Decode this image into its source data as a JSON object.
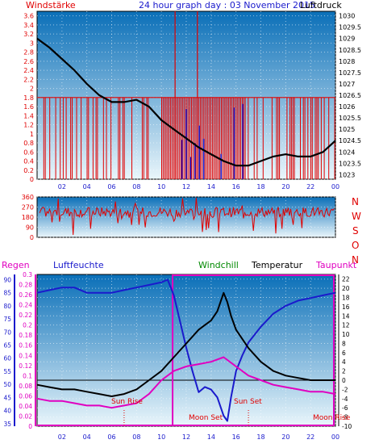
{
  "header": {
    "title": "24 hour graph day : 03 November 2015",
    "left_label": "Windstärke",
    "right_label": "Luftdruck"
  },
  "direction_letters": [
    "N",
    "W",
    "S",
    "O",
    "N"
  ],
  "bottom_labels": {
    "regen": "Regen",
    "luftfeuchte": "Luftfeuchte",
    "windchill": "Windchill",
    "temperatur": "Temperatur",
    "taupunkt": "Taupunkt"
  },
  "annotations": {
    "sun_rise": "Sun Rise",
    "moon_set_1": "Moon Set",
    "sun_set": "Sun Set",
    "moon_set_2": "Moon Rise"
  },
  "colors": {
    "red": "#e00000",
    "blue": "#1a1acc",
    "green": "#008800",
    "magenta": "#e000c0",
    "black": "#000000",
    "plot_top": "#0a6fb8",
    "plot_bottom": "#eaf6fb"
  },
  "chart_data": [
    {
      "type": "line",
      "name": "wind-pressure",
      "x_ticks": [
        "02",
        "04",
        "06",
        "08",
        "10",
        "12",
        "14",
        "16",
        "18",
        "20",
        "22",
        "00"
      ],
      "y_left_ticks": [
        "0",
        "0.2",
        "0.4",
        "0.6",
        "0.8",
        "1",
        "1.2",
        "1.4",
        "1.6",
        "1.8",
        "2",
        "2.2",
        "2.4",
        "2.6",
        "2.8",
        "3",
        "3.2",
        "3.4",
        "3.6"
      ],
      "y_right_ticks": [
        "1023",
        "1023.5",
        "1024",
        "1024.5",
        "1025",
        "1025.5",
        "1026",
        "1026.5",
        "1027",
        "1027.5",
        "1028",
        "1028.5",
        "1029",
        "1029.5",
        "1030"
      ],
      "y_left_range": [
        0,
        3.7
      ],
      "y_right_range": [
        1022.8,
        1030.2
      ],
      "pressure": {
        "x": [
          0,
          1,
          2,
          3,
          4,
          5,
          6,
          7,
          8,
          9,
          10,
          11,
          12,
          13,
          14,
          15,
          16,
          17,
          18,
          19,
          20,
          21,
          22,
          23,
          24
        ],
        "y": [
          1029.0,
          1028.6,
          1028.1,
          1027.6,
          1027.0,
          1026.5,
          1026.2,
          1026.2,
          1026.3,
          1026.0,
          1025.4,
          1025.0,
          1024.6,
          1024.2,
          1023.9,
          1023.6,
          1023.4,
          1023.4,
          1023.6,
          1023.8,
          1023.9,
          1023.8,
          1023.8,
          1024.0,
          1024.5
        ]
      },
      "wind_avg_level": 1.8,
      "wind_gusts": [
        {
          "x": 11.1,
          "y": 3.7
        },
        {
          "x": 12.9,
          "y": 3.7
        }
      ],
      "grid": true
    },
    {
      "type": "scatter",
      "name": "wind-direction",
      "y_ticks": [
        "0",
        "90",
        "180",
        "270",
        "360"
      ],
      "y_range": [
        0,
        360
      ],
      "x_range": [
        0,
        24
      ],
      "typical_band": [
        180,
        270
      ]
    },
    {
      "type": "line",
      "name": "humidity-temperature",
      "y_regen_ticks": [
        "0",
        "0.02",
        "0.04",
        "0.06",
        "0.08",
        "0.1",
        "0.12",
        "0.14",
        "0.16",
        "0.18",
        "0.2",
        "0.22",
        "0.24",
        "0.26",
        "0.28",
        "0.3"
      ],
      "y_humidity_ticks": [
        "35",
        "40",
        "45",
        "50",
        "55",
        "60",
        "65",
        "70",
        "75",
        "80",
        "85",
        "90"
      ],
      "y_temp_ticks": [
        "-10",
        "-8",
        "-6",
        "-4",
        "-2",
        "0",
        "2",
        "4",
        "6",
        "8",
        "10",
        "12",
        "14",
        "16",
        "18",
        "20",
        "22"
      ],
      "y_temp_range": [
        -10,
        23
      ],
      "y_humidity_range": [
        34,
        92
      ],
      "humidity": {
        "x": [
          0,
          1,
          2,
          3,
          4,
          5,
          6,
          7,
          8,
          9,
          10,
          10.5,
          11,
          11.5,
          12,
          12.5,
          13,
          13.5,
          14,
          14.5,
          15,
          15.3,
          15.6,
          16,
          16.5,
          17,
          18,
          19,
          20,
          21,
          22,
          23,
          24
        ],
        "y": [
          85,
          86,
          87,
          87,
          85,
          85,
          85,
          86,
          87,
          88,
          89,
          90,
          84,
          74,
          64,
          55,
          47,
          49,
          48,
          45,
          38,
          36,
          45,
          55,
          61,
          66,
          72,
          77,
          80,
          82,
          83,
          84,
          85
        ]
      },
      "temperature": {
        "x": [
          0,
          1,
          2,
          3,
          4,
          5,
          6,
          7,
          8,
          9,
          10,
          11,
          12,
          13,
          14,
          14.5,
          15,
          15.3,
          15.6,
          16,
          17,
          18,
          19,
          20,
          21,
          22,
          23,
          24
        ],
        "y": [
          -1,
          -1.5,
          -2,
          -2,
          -2.5,
          -3,
          -3.5,
          -3,
          -2,
          0,
          2,
          5,
          8,
          11,
          13,
          15,
          19,
          17,
          14,
          11,
          7,
          4,
          2,
          1,
          0.5,
          0,
          0,
          0
        ]
      },
      "dewpoint": {
        "x": [
          0,
          1,
          2,
          3,
          4,
          5,
          6,
          7,
          8,
          9,
          10,
          11,
          12,
          13,
          14,
          15,
          16,
          17,
          18,
          19,
          20,
          21,
          22,
          23,
          24
        ],
        "y": [
          -4,
          -4.5,
          -4.5,
          -5,
          -5.5,
          -5.5,
          -6,
          -5.5,
          -5,
          -3,
          0,
          2,
          3,
          3.5,
          4,
          5,
          3,
          1,
          0,
          -1,
          -1.5,
          -2,
          -2.5,
          -2.5,
          -3
        ]
      },
      "zero_line": 0,
      "sun_rise_hour": 7.0,
      "sun_set_hour": 17.0,
      "moon_set_hour": 10.9,
      "grid": true
    }
  ]
}
